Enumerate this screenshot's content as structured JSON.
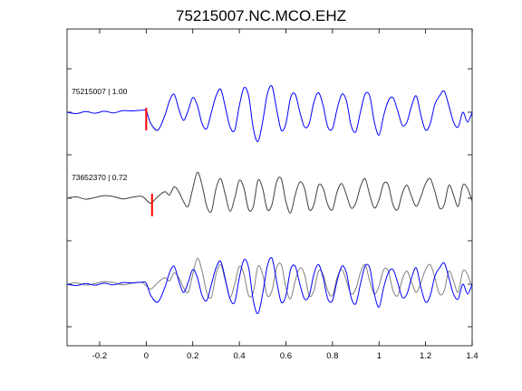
{
  "chart_data": {
    "type": "line",
    "title": "75215007.NC.MCO.EHZ",
    "xlabel": "",
    "ylabel": "",
    "xlim": [
      -0.34,
      1.4
    ],
    "xticks": [
      -0.2,
      0,
      0.2,
      0.4,
      0.6,
      0.8,
      1,
      1.2,
      1.4
    ],
    "xtick_labels": [
      "-0.2",
      "0",
      "0.2",
      "0.4",
      "0.6",
      "0.8",
      "1",
      "1.2",
      "1.4"
    ],
    "grid": false,
    "traces": [
      {
        "label": "75215007 | 1.00",
        "color": "#0000ff",
        "pick_time": 0.0,
        "pick_color": "#ff0000",
        "row": 0
      },
      {
        "label": "73652370 | 0.72",
        "color": "#404040",
        "pick_time": 0.025,
        "pick_color": "#ff0000",
        "row": 1
      },
      {
        "label": "",
        "overlay": true,
        "colors": [
          "#808080",
          "#0000ff"
        ],
        "row": 2
      }
    ],
    "series": [
      {
        "x": [
          -0.34,
          -0.3,
          -0.26,
          -0.22,
          -0.18,
          -0.14,
          -0.1,
          -0.06,
          -0.02,
          0.0,
          0.02,
          0.05,
          0.08,
          0.1,
          0.12,
          0.14,
          0.16,
          0.18,
          0.2,
          0.22,
          0.24,
          0.26,
          0.28,
          0.3,
          0.32,
          0.34,
          0.36,
          0.38,
          0.4,
          0.42,
          0.44,
          0.46,
          0.48,
          0.5,
          0.52,
          0.54,
          0.56,
          0.58,
          0.6,
          0.62,
          0.64,
          0.66,
          0.68,
          0.7,
          0.72,
          0.74,
          0.76,
          0.78,
          0.8,
          0.82,
          0.84,
          0.86,
          0.88,
          0.9,
          0.92,
          0.94,
          0.96,
          0.98,
          1.0,
          1.02,
          1.04,
          1.06,
          1.08,
          1.1,
          1.12,
          1.14,
          1.16,
          1.18,
          1.2,
          1.22,
          1.24,
          1.26,
          1.28,
          1.3,
          1.32,
          1.34,
          1.36,
          1.38,
          1.4
        ],
        "y": [
          0.0,
          -0.04,
          0.02,
          -0.03,
          0.03,
          -0.02,
          0.05,
          0.04,
          0.06,
          0.03,
          -0.35,
          -0.55,
          -0.1,
          0.35,
          0.55,
          0.1,
          -0.25,
          0.05,
          0.45,
          0.2,
          -0.35,
          -0.5,
          0.0,
          0.5,
          0.7,
          0.15,
          -0.45,
          -0.55,
          0.2,
          0.75,
          0.5,
          -0.5,
          -0.9,
          -0.3,
          0.55,
          0.8,
          0.1,
          -0.55,
          -0.35,
          0.45,
          0.55,
          0.0,
          -0.45,
          -0.35,
          0.3,
          0.6,
          0.2,
          -0.45,
          -0.5,
          0.1,
          0.55,
          0.35,
          -0.4,
          -0.6,
          0.0,
          0.55,
          0.5,
          -0.3,
          -0.7,
          -0.1,
          0.35,
          0.45,
          0.05,
          -0.4,
          -0.3,
          0.2,
          0.5,
          -0.1,
          -0.55,
          -0.35,
          0.25,
          0.5,
          0.65,
          0.2,
          -0.3,
          -0.45,
          0.0,
          -0.3,
          0.0
        ]
      },
      {
        "x": [
          -0.34,
          -0.3,
          -0.26,
          -0.22,
          -0.18,
          -0.14,
          -0.1,
          -0.06,
          -0.02,
          0.0,
          0.02,
          0.05,
          0.08,
          0.1,
          0.12,
          0.14,
          0.16,
          0.18,
          0.2,
          0.22,
          0.24,
          0.26,
          0.28,
          0.3,
          0.32,
          0.34,
          0.36,
          0.38,
          0.4,
          0.42,
          0.44,
          0.46,
          0.48,
          0.5,
          0.52,
          0.54,
          0.56,
          0.58,
          0.6,
          0.62,
          0.64,
          0.66,
          0.68,
          0.7,
          0.72,
          0.74,
          0.76,
          0.78,
          0.8,
          0.82,
          0.84,
          0.86,
          0.88,
          0.9,
          0.92,
          0.94,
          0.96,
          0.98,
          1.0,
          1.02,
          1.04,
          1.06,
          1.08,
          1.1,
          1.12,
          1.14,
          1.16,
          1.18,
          1.2,
          1.22,
          1.24,
          1.26,
          1.28,
          1.3,
          1.32,
          1.34,
          1.36,
          1.38,
          1.4
        ],
        "y": [
          0.0,
          0.04,
          -0.03,
          0.02,
          0.08,
          0.05,
          -0.02,
          0.03,
          0.06,
          -0.05,
          -0.15,
          0.05,
          0.2,
          0.1,
          0.35,
          0.2,
          -0.1,
          -0.25,
          0.3,
          0.8,
          0.4,
          -0.25,
          -0.4,
          0.3,
          0.6,
          0.1,
          -0.4,
          0.0,
          0.55,
          0.3,
          -0.35,
          -0.25,
          0.55,
          0.3,
          -0.35,
          -0.2,
          0.5,
          0.6,
          -0.1,
          -0.45,
          0.1,
          0.5,
          0.3,
          -0.35,
          -0.2,
          0.4,
          0.3,
          -0.2,
          -0.35,
          0.2,
          0.45,
          0.1,
          -0.3,
          -0.15,
          0.35,
          0.6,
          0.1,
          -0.3,
          -0.05,
          0.45,
          0.4,
          -0.2,
          -0.35,
          0.15,
          0.4,
          0.05,
          -0.25,
          0.05,
          0.45,
          0.6,
          0.2,
          -0.3,
          -0.2,
          0.4,
          0.1,
          -0.25,
          0.4,
          0.3,
          -0.1
        ]
      }
    ]
  }
}
